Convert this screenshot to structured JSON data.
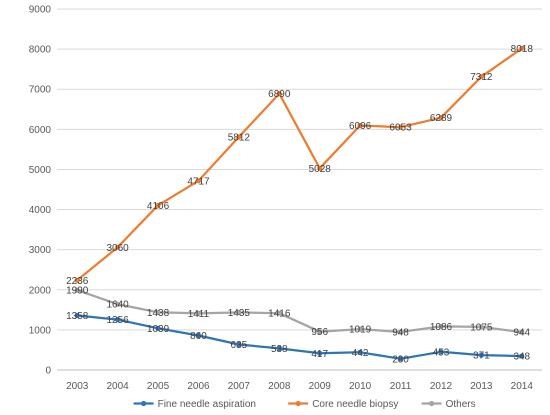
{
  "chart_data": {
    "type": "line",
    "title": "",
    "xlabel": "",
    "ylabel": "",
    "categories": [
      "2003",
      "2004",
      "2005",
      "2006",
      "2007",
      "2008",
      "2009",
      "2010",
      "2011",
      "2012",
      "2013",
      "2014"
    ],
    "ylim": [
      0,
      9000
    ],
    "yticks": [
      0,
      1000,
      2000,
      3000,
      4000,
      5000,
      6000,
      7000,
      8000,
      9000
    ],
    "grid": "horizontal",
    "legend": "bottom",
    "series": [
      {
        "name": "Fine needle aspiration",
        "color": "#2E75B6",
        "values": [
          1358,
          1256,
          1039,
          860,
          635,
          538,
          417,
          442,
          280,
          453,
          371,
          348
        ]
      },
      {
        "name": "Core needle biopsy",
        "color": "#ED7D31",
        "values": [
          2236,
          3060,
          4106,
          4717,
          5812,
          6890,
          5028,
          6096,
          6053,
          6289,
          7312,
          8018
        ]
      },
      {
        "name": "Others",
        "color": "#A5A5A5",
        "values": [
          1990,
          1640,
          1438,
          1411,
          1435,
          1416,
          956,
          1019,
          948,
          1086,
          1075,
          944
        ]
      }
    ]
  }
}
